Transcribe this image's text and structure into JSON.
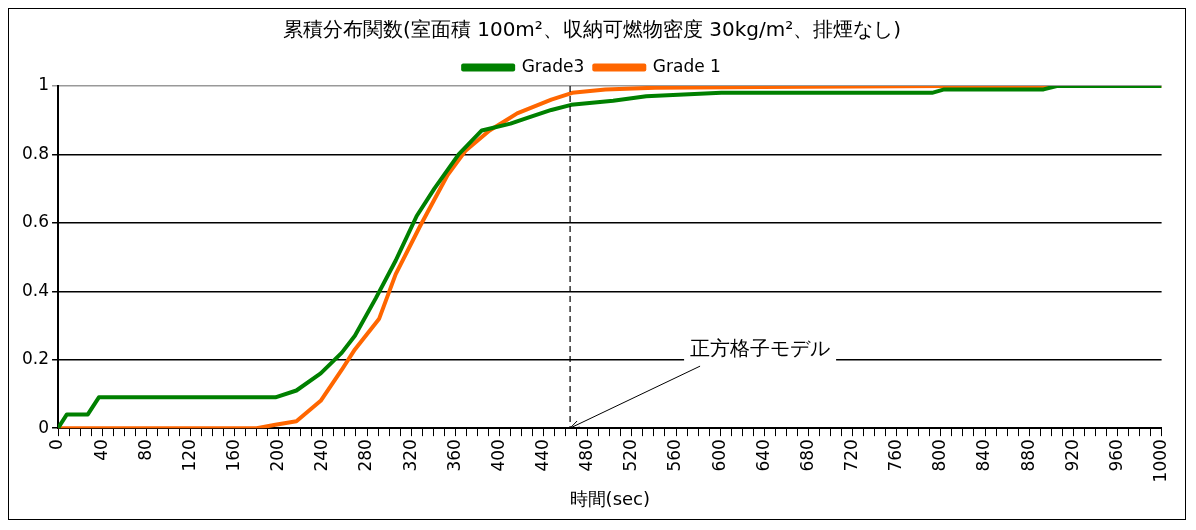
{
  "chart_data": {
    "type": "line",
    "title": "累積分布関数(室面積 100m²、収納可燃物密度 30kg/m²、排煙なし)",
    "xlabel": "時間(sec)",
    "xlim": [
      0,
      1000
    ],
    "ylim": [
      0,
      1
    ],
    "yticks": [
      0,
      0.2,
      0.4,
      0.6,
      0.8,
      1
    ],
    "xticks": [
      0,
      {
        "value": 10,
        "label": null
      },
      {
        "value": 20,
        "label": null
      },
      {
        "value": 30,
        "label": null
      },
      40,
      {
        "value": 50,
        "label": null
      },
      {
        "value": 60,
        "label": null
      },
      {
        "value": 70,
        "label": null
      },
      80,
      {
        "value": 90,
        "label": null
      },
      {
        "value": 100,
        "label": null
      },
      {
        "value": 110,
        "label": null
      },
      120,
      {
        "value": 130,
        "label": null
      },
      {
        "value": 140,
        "label": null
      },
      {
        "value": 150,
        "label": null
      },
      160,
      {
        "value": 170,
        "label": null
      },
      {
        "value": 180,
        "label": null
      },
      {
        "value": 190,
        "label": null
      },
      200,
      {
        "value": 210,
        "label": null
      },
      {
        "value": 220,
        "label": null
      },
      {
        "value": 230,
        "label": null
      },
      240,
      {
        "value": 250,
        "label": null
      },
      {
        "value": 260,
        "label": null
      },
      {
        "value": 270,
        "label": null
      },
      280,
      {
        "value": 290,
        "label": null
      },
      {
        "value": 300,
        "label": null
      },
      {
        "value": 310,
        "label": null
      },
      320,
      {
        "value": 330,
        "label": null
      },
      {
        "value": 340,
        "label": null
      },
      {
        "value": 350,
        "label": null
      },
      360,
      {
        "value": 370,
        "label": null
      },
      {
        "value": 380,
        "label": null
      },
      {
        "value": 390,
        "label": null
      },
      400,
      {
        "value": 410,
        "label": null
      },
      {
        "value": 420,
        "label": null
      },
      {
        "value": 430,
        "label": null
      },
      440,
      {
        "value": 450,
        "label": null
      },
      {
        "value": 460,
        "label": null
      },
      {
        "value": 470,
        "label": null
      },
      480,
      {
        "value": 490,
        "label": null
      },
      {
        "value": 500,
        "label": null
      },
      {
        "value": 510,
        "label": null
      },
      520,
      {
        "value": 530,
        "label": null
      },
      {
        "value": 540,
        "label": null
      },
      {
        "value": 550,
        "label": null
      },
      560,
      {
        "value": 570,
        "label": null
      },
      {
        "value": 580,
        "label": null
      },
      {
        "value": 590,
        "label": null
      },
      600,
      {
        "value": 610,
        "label": null
      },
      {
        "value": 620,
        "label": null
      },
      {
        "value": 630,
        "label": null
      },
      640,
      {
        "value": 650,
        "label": null
      },
      {
        "value": 660,
        "label": null
      },
      {
        "value": 670,
        "label": null
      },
      680,
      {
        "value": 690,
        "label": null
      },
      {
        "value": 700,
        "label": null
      },
      {
        "value": 710,
        "label": null
      },
      720,
      {
        "value": 730,
        "label": null
      },
      {
        "value": 740,
        "label": null
      },
      {
        "value": 750,
        "label": null
      },
      760,
      {
        "value": 770,
        "label": null
      },
      {
        "value": 780,
        "label": null
      },
      {
        "value": 790,
        "label": null
      },
      800,
      {
        "value": 810,
        "label": null
      },
      {
        "value": 820,
        "label": null
      },
      {
        "value": 830,
        "label": null
      },
      840,
      {
        "value": 850,
        "label": null
      },
      {
        "value": 860,
        "label": null
      },
      {
        "value": 870,
        "label": null
      },
      880,
      {
        "value": 890,
        "label": null
      },
      {
        "value": 900,
        "label": null
      },
      {
        "value": 910,
        "label": null
      },
      920,
      {
        "value": 930,
        "label": null
      },
      {
        "value": 940,
        "label": null
      },
      {
        "value": 950,
        "label": null
      },
      960,
      {
        "value": 970,
        "label": null
      },
      {
        "value": 980,
        "label": null
      },
      {
        "value": 990,
        "label": null
      },
      1000
    ],
    "grid": "y",
    "legend": "top",
    "marker": "none",
    "line_style": "solid",
    "series": [
      {
        "name": "Grade3",
        "color": "#008000",
        "x": [
          0,
          8,
          27,
          37,
          197,
          216,
          238,
          257,
          269,
          288,
          306,
          325,
          341,
          363,
          384,
          410,
          428,
          447,
          465,
          503,
          533,
          601,
          792,
          803,
          893,
          905,
          1000
        ],
        "values": [
          0,
          0.04,
          0.04,
          0.09,
          0.09,
          0.11,
          0.16,
          0.22,
          0.27,
          0.38,
          0.49,
          0.62,
          0.7,
          0.8,
          0.87,
          0.89,
          0.91,
          0.93,
          0.945,
          0.957,
          0.97,
          0.98,
          0.98,
          0.99,
          0.99,
          1,
          1
        ]
      },
      {
        "name": "Grade 1",
        "color": "#ff6600",
        "x": [
          0,
          180,
          197,
          216,
          238,
          257,
          269,
          291,
          306,
          328,
          353,
          369,
          391,
          416,
          447,
          466,
          496,
          541,
          803,
          1000
        ],
        "values": [
          0,
          0,
          0.01,
          0.02,
          0.08,
          0.17,
          0.23,
          0.32,
          0.45,
          0.59,
          0.74,
          0.81,
          0.87,
          0.92,
          0.96,
          0.98,
          0.99,
          0.995,
          1,
          1
        ]
      }
    ],
    "ref_lines": [
      {
        "axis": "x",
        "value": 464,
        "line_style": "dashed",
        "color": "#000000"
      }
    ],
    "annotations": [
      {
        "text": "正方格子モデル",
        "x": 464,
        "y": 0
      }
    ]
  }
}
